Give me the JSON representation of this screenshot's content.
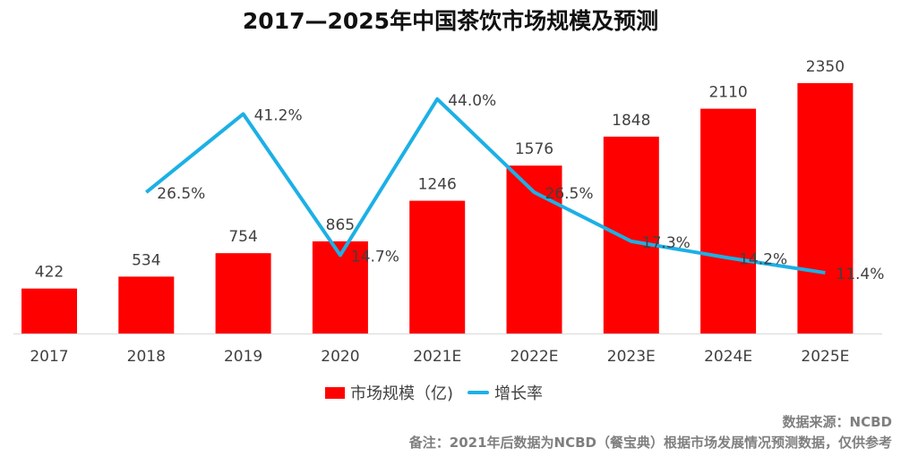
{
  "chart_data": {
    "type": "bar+line",
    "title": "2017—2025年中国茶饮市场规模及预测",
    "categories": [
      "2017",
      "2018",
      "2019",
      "2020",
      "2021E",
      "2022E",
      "2023E",
      "2024E",
      "2025E"
    ],
    "series": [
      {
        "name": "市场规模（亿)",
        "type": "bar",
        "color": "#ff0000",
        "values": [
          422,
          534,
          754,
          865,
          1246,
          1576,
          1848,
          2110,
          2350
        ],
        "labels": [
          "422",
          "534",
          "754",
          "865",
          "1246",
          "1576",
          "1848",
          "2110",
          "2350"
        ]
      },
      {
        "name": "增长率",
        "type": "line",
        "color": "#1cb0e6",
        "values": [
          null,
          26.5,
          41.2,
          14.7,
          44.0,
          26.5,
          17.3,
          14.2,
          11.4
        ],
        "labels": [
          "",
          "26.5%",
          "41.2%",
          "14.7%",
          "44.0%",
          "26.5%",
          "17.3%",
          "14.2%",
          "11.4%"
        ]
      }
    ],
    "ylim": [
      0,
      2350
    ],
    "y2lim": [
      0,
      47
    ],
    "grid": false,
    "legend": "bottom"
  },
  "watermark": "NCBD",
  "footer": {
    "source": "数据来源：NCBD",
    "note": "备注：2021年后数据为NCBD（餐宝典）根据市场发展情况预测数据，仅供参考"
  }
}
